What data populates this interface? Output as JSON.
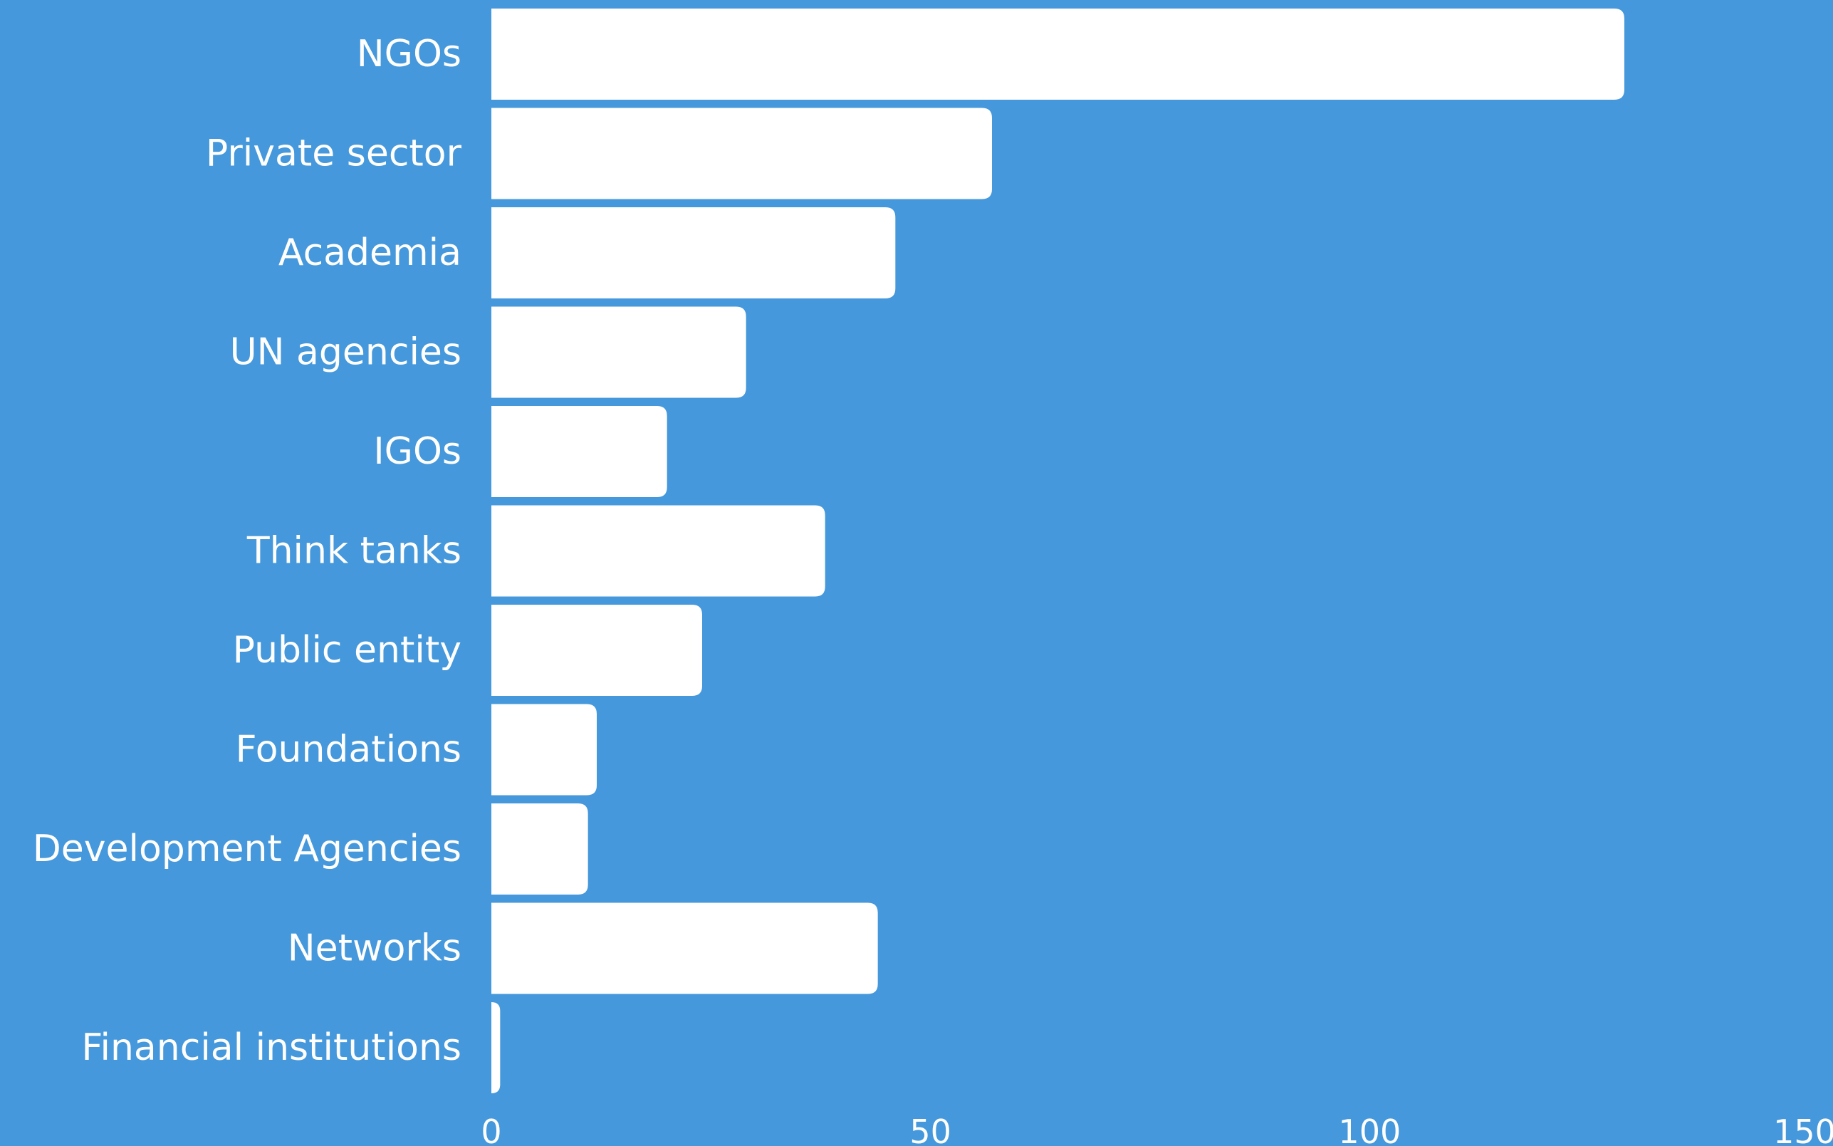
{
  "colors": {
    "background": "#4498db",
    "bar": "#ffffff",
    "text": "#ffffff"
  },
  "chart_data": {
    "type": "bar",
    "orientation": "horizontal",
    "title": "",
    "xlabel": "",
    "ylabel": "",
    "categories": [
      "NGOs",
      "Private sector",
      "Academia",
      "UN agencies",
      "IGOs",
      "Think tanks",
      "Public entity",
      "Foundations",
      "Development Agencies",
      "Networks",
      "Financial institutions"
    ],
    "values": [
      129,
      57,
      46,
      29,
      20,
      38,
      24,
      12,
      11,
      44,
      1
    ],
    "xlim": [
      0,
      150
    ],
    "xticks": [
      "0",
      "50",
      "100",
      "150"
    ],
    "grid": false,
    "legend": "none"
  }
}
